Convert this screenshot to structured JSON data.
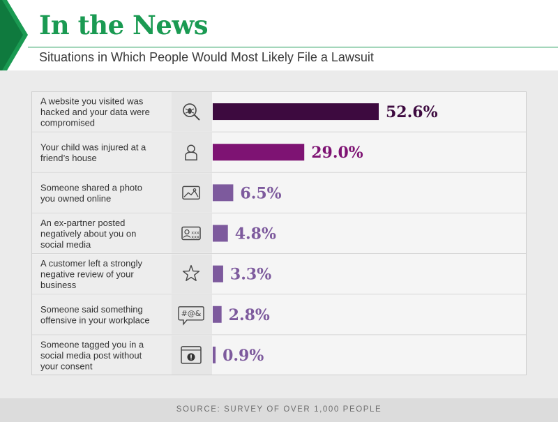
{
  "header": {
    "title": "In the News",
    "subtitle": "Situations in Which People Would Most Likely File a Lawsuit"
  },
  "footer": {
    "source": "SOURCE: SURVEY OF OVER 1,000 PEOPLE"
  },
  "colors": {
    "brand_green": "#1a9a52",
    "bar_dark": "#3d0a3f",
    "bar_mid": "#7e1373",
    "bar_light": "#7d5a9d",
    "value_text_dark": "#3d0a3f",
    "value_text_mid": "#7e1373",
    "value_text_light": "#7d5a9d"
  },
  "chart_data": {
    "type": "bar",
    "orientation": "horizontal",
    "categories": [
      "A website you visited was hacked and your data were compromised",
      "Your child was injured at a friend’s house",
      "Someone shared a photo you owned online",
      "An ex-partner posted negatively about you on social media",
      "A customer left a strongly negative review of your business",
      "Someone said something offensive in your workplace",
      "Someone tagged you in a social media post without your consent"
    ],
    "category_lines": [
      [
        "A website you visited was",
        "hacked and your data were",
        "compromised"
      ],
      [
        "Your child was injured at a",
        "friend’s house"
      ],
      [
        "Someone shared a photo",
        "you owned online"
      ],
      [
        "An ex-partner posted",
        "negatively about you on",
        "social media"
      ],
      [
        "A customer left a strongly",
        "negative review of your",
        "business"
      ],
      [
        "Someone said something",
        "offensive in your workplace"
      ],
      [
        "Someone tagged you in a",
        "social media post without",
        "your consent"
      ]
    ],
    "values": [
      52.6,
      29.0,
      6.5,
      4.8,
      3.3,
      2.8,
      0.9
    ],
    "value_labels": [
      "52.6%",
      "29.0%",
      "6.5%",
      "4.8%",
      "3.3%",
      "2.8%",
      "0.9%"
    ],
    "icons": [
      "bug-search-icon",
      "person-icon",
      "photo-icon",
      "id-card-icon",
      "star-icon",
      "speech-bubble-icon",
      "alert-window-icon"
    ],
    "icon_text": {
      "speech-bubble-icon": "#@&",
      "id-card-icon": "xxx"
    },
    "xlim": [
      0,
      100
    ],
    "grid": false,
    "legend": "none"
  }
}
